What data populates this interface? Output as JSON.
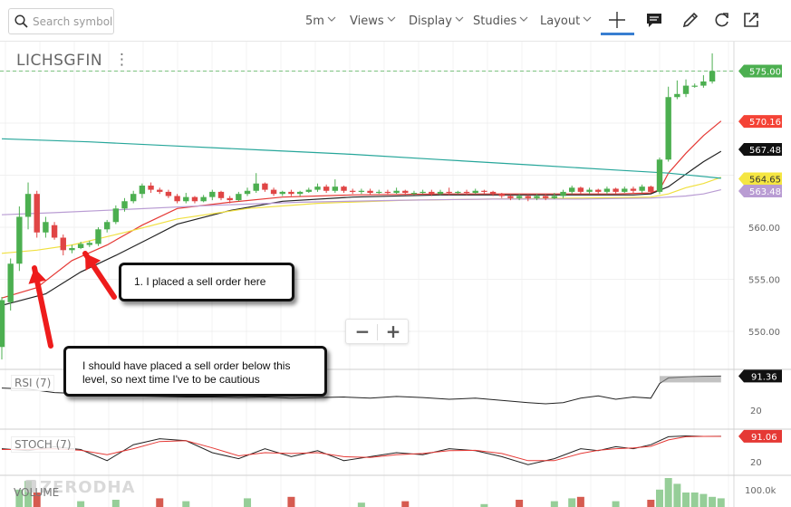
{
  "toolbar": {
    "search_placeholder": "Search symbol",
    "menus": [
      {
        "label": "5m",
        "x": 337
      },
      {
        "label": "Views",
        "x": 386
      },
      {
        "label": "Display",
        "x": 451
      },
      {
        "label": "Studies",
        "x": 522
      },
      {
        "label": "Layout",
        "x": 596
      }
    ]
  },
  "symbol": "LICHSGFIN",
  "chart_data": {
    "type": "candlestick",
    "interval": "5m",
    "y_ticks": [
      "575.00",
      "570.00",
      "565.00",
      "560.00",
      "555.00",
      "550.00"
    ],
    "last_price": "575.00",
    "value_tags": [
      {
        "label": "575.00",
        "color": "#4caf50",
        "value": 575.0
      },
      {
        "label": "570.16",
        "color": "#f44336",
        "value": 570.16
      },
      {
        "label": "567.48",
        "color": "#111111",
        "value": 567.48
      },
      {
        "label": "564.65",
        "color": "#f5e642",
        "value": 564.65
      },
      {
        "label": "563.48",
        "color": "#b99cd3",
        "value": 563.48
      }
    ],
    "candles": [
      [
        548.5,
        553.0,
        547.3,
        553.3
      ],
      [
        552.8,
        556.5,
        552.0,
        557.0
      ],
      [
        556.5,
        561.0,
        555.8,
        562.0
      ],
      [
        561.0,
        563.2,
        559.8,
        564.3
      ],
      [
        563.2,
        559.5,
        559.0,
        563.5
      ],
      [
        559.5,
        560.5,
        559.0,
        561.0
      ],
      [
        560.2,
        559.0,
        558.8,
        560.5
      ],
      [
        559.0,
        557.8,
        557.3,
        559.3
      ],
      [
        557.8,
        558.0,
        557.5,
        558.3
      ],
      [
        558.0,
        558.4,
        557.9,
        558.6
      ],
      [
        558.3,
        558.5,
        558.1,
        558.7
      ],
      [
        558.4,
        559.8,
        558.2,
        560.0
      ],
      [
        559.8,
        560.5,
        559.5,
        560.7
      ],
      [
        560.5,
        561.8,
        560.3,
        562.1
      ],
      [
        561.8,
        562.5,
        561.5,
        562.8
      ],
      [
        562.5,
        563.2,
        562.3,
        563.5
      ],
      [
        563.2,
        564.0,
        562.8,
        564.2
      ],
      [
        564.0,
        563.6,
        563.3,
        564.3
      ],
      [
        563.6,
        563.4,
        563.2,
        563.8
      ],
      [
        563.4,
        563.0,
        562.8,
        563.6
      ],
      [
        563.0,
        562.5,
        562.3,
        563.2
      ],
      [
        562.5,
        562.9,
        562.3,
        563.3
      ],
      [
        562.9,
        562.5,
        562.3,
        563.0
      ],
      [
        562.5,
        562.9,
        562.4,
        563.1
      ],
      [
        562.9,
        563.4,
        562.6,
        563.6
      ],
      [
        563.4,
        562.8,
        562.6,
        563.5
      ],
      [
        562.8,
        562.6,
        562.3,
        563.0
      ],
      [
        562.6,
        563.2,
        562.5,
        563.4
      ],
      [
        563.2,
        563.5,
        563.0,
        563.8
      ],
      [
        563.5,
        564.2,
        563.3,
        565.2
      ],
      [
        564.2,
        563.6,
        563.4,
        564.3
      ],
      [
        563.6,
        563.2,
        563.0,
        563.8
      ],
      [
        563.2,
        563.4,
        563.0,
        563.5
      ],
      [
        563.4,
        563.2,
        563.0,
        563.6
      ],
      [
        563.2,
        563.4,
        563.0,
        563.5
      ],
      [
        563.4,
        563.6,
        563.3,
        563.8
      ],
      [
        563.6,
        563.9,
        563.4,
        564.2
      ],
      [
        563.9,
        563.5,
        563.3,
        564.1
      ],
      [
        563.5,
        563.9,
        563.3,
        564.6
      ],
      [
        563.9,
        563.5,
        563.3,
        564.0
      ],
      [
        563.5,
        563.4,
        563.2,
        563.7
      ],
      [
        563.4,
        563.5,
        563.2,
        563.7
      ],
      [
        563.5,
        563.3,
        563.1,
        563.7
      ],
      [
        563.3,
        563.4,
        563.2,
        563.6
      ],
      [
        563.4,
        563.3,
        563.1,
        563.6
      ],
      [
        563.3,
        563.5,
        563.2,
        563.8
      ],
      [
        563.5,
        563.3,
        563.1,
        563.6
      ],
      [
        563.3,
        563.3,
        563.1,
        563.5
      ],
      [
        563.3,
        563.4,
        563.2,
        563.6
      ],
      [
        563.4,
        563.2,
        563.0,
        563.6
      ],
      [
        563.2,
        563.4,
        563.1,
        563.6
      ],
      [
        563.4,
        563.3,
        563.1,
        563.8
      ],
      [
        563.3,
        563.4,
        563.2,
        563.5
      ],
      [
        563.4,
        563.3,
        563.1,
        563.6
      ],
      [
        563.3,
        563.5,
        563.2,
        563.7
      ],
      [
        563.5,
        563.4,
        563.2,
        563.6
      ],
      [
        563.4,
        563.2,
        563.0,
        563.5
      ],
      [
        563.2,
        563.0,
        562.8,
        563.3
      ],
      [
        563.0,
        562.8,
        562.6,
        563.1
      ],
      [
        562.8,
        563.0,
        562.6,
        563.2
      ],
      [
        563.0,
        562.8,
        562.5,
        563.1
      ],
      [
        562.8,
        563.0,
        562.6,
        563.2
      ],
      [
        563.0,
        562.8,
        562.6,
        563.2
      ],
      [
        562.8,
        563.0,
        562.7,
        563.3
      ],
      [
        563.0,
        563.4,
        562.8,
        563.6
      ],
      [
        563.4,
        563.8,
        563.2,
        564.0
      ],
      [
        563.8,
        563.4,
        563.2,
        563.9
      ],
      [
        563.4,
        563.6,
        563.2,
        563.8
      ],
      [
        563.6,
        563.4,
        563.2,
        563.7
      ],
      [
        563.4,
        563.7,
        563.2,
        563.9
      ],
      [
        563.7,
        563.4,
        563.2,
        563.8
      ],
      [
        563.4,
        563.7,
        563.3,
        563.9
      ],
      [
        563.7,
        563.5,
        563.3,
        563.9
      ],
      [
        563.5,
        563.9,
        563.3,
        564.1
      ],
      [
        563.9,
        563.4,
        563.3,
        564.0
      ],
      [
        563.4,
        566.5,
        563.2,
        566.7
      ],
      [
        566.5,
        572.5,
        566.3,
        573.5
      ],
      [
        572.5,
        572.8,
        572.3,
        574.1
      ],
      [
        572.8,
        573.6,
        572.5,
        574.2
      ],
      [
        573.6,
        573.6,
        573.4,
        573.8
      ],
      [
        573.6,
        574.0,
        573.4,
        574.6
      ],
      [
        574.0,
        575.0,
        573.8,
        576.7
      ]
    ],
    "series": [
      {
        "name": "ema_red",
        "color": "#e53935",
        "points": [
          [
            0,
            553.2
          ],
          [
            4,
            554.2
          ],
          [
            8,
            556.8
          ],
          [
            12,
            558.3
          ],
          [
            16,
            560.2
          ],
          [
            20,
            561.8
          ],
          [
            26,
            562.4
          ],
          [
            32,
            562.9
          ],
          [
            40,
            563.1
          ],
          [
            50,
            563.2
          ],
          [
            60,
            563.2
          ],
          [
            66,
            563.2
          ],
          [
            70,
            563.2
          ],
          [
            74,
            563.3
          ],
          [
            75,
            563.6
          ],
          [
            76,
            565.2
          ],
          [
            78,
            567.1
          ],
          [
            80,
            568.8
          ],
          [
            82,
            570.2
          ]
        ]
      },
      {
        "name": "ema_black",
        "color": "#222222",
        "points": [
          [
            0,
            552.5
          ],
          [
            5,
            553.6
          ],
          [
            9,
            555.7
          ],
          [
            13,
            557.3
          ],
          [
            17,
            559.0
          ],
          [
            20,
            560.3
          ],
          [
            26,
            561.6
          ],
          [
            32,
            562.5
          ],
          [
            40,
            562.9
          ],
          [
            50,
            563.1
          ],
          [
            60,
            563.1
          ],
          [
            66,
            563.1
          ],
          [
            72,
            563.1
          ],
          [
            74,
            563.2
          ],
          [
            76,
            563.9
          ],
          [
            78,
            565.1
          ],
          [
            80,
            566.3
          ],
          [
            82,
            567.3
          ]
        ]
      },
      {
        "name": "ema_yellow",
        "color": "#f0e040",
        "points": [
          [
            0,
            557.5
          ],
          [
            4,
            557.8
          ],
          [
            8,
            558.3
          ],
          [
            14,
            559.5
          ],
          [
            20,
            560.8
          ],
          [
            28,
            561.8
          ],
          [
            36,
            562.3
          ],
          [
            46,
            562.6
          ],
          [
            56,
            562.7
          ],
          [
            66,
            562.8
          ],
          [
            74,
            562.9
          ],
          [
            76,
            563.2
          ],
          [
            78,
            563.8
          ],
          [
            80,
            564.2
          ],
          [
            82,
            564.8
          ]
        ]
      },
      {
        "name": "ema_purple",
        "color": "#b99cd3",
        "points": [
          [
            0,
            561.2
          ],
          [
            6,
            561.4
          ],
          [
            14,
            561.7
          ],
          [
            24,
            562.1
          ],
          [
            34,
            562.4
          ],
          [
            46,
            562.6
          ],
          [
            56,
            562.7
          ],
          [
            66,
            562.7
          ],
          [
            74,
            562.8
          ],
          [
            76,
            562.9
          ],
          [
            78,
            563.0
          ],
          [
            80,
            563.2
          ],
          [
            82,
            563.6
          ]
        ]
      },
      {
        "name": "ema_teal",
        "color": "#26a69a",
        "points": [
          [
            0,
            568.5
          ],
          [
            10,
            568.2
          ],
          [
            20,
            567.8
          ],
          [
            30,
            567.4
          ],
          [
            40,
            567.0
          ],
          [
            50,
            566.5
          ],
          [
            60,
            566.0
          ],
          [
            70,
            565.5
          ],
          [
            76,
            565.2
          ],
          [
            82,
            564.7
          ]
        ]
      }
    ],
    "rsi": {
      "label": "RSI (7)",
      "value_tag": "91.36",
      "tick": "20",
      "points": [
        [
          0,
          70
        ],
        [
          3,
          68
        ],
        [
          6,
          62
        ],
        [
          9,
          60
        ],
        [
          12,
          58
        ],
        [
          15,
          56
        ],
        [
          18,
          55
        ],
        [
          21,
          54
        ],
        [
          24,
          54
        ],
        [
          27,
          53
        ],
        [
          30,
          54
        ],
        [
          33,
          52
        ],
        [
          36,
          53
        ],
        [
          39,
          54
        ],
        [
          42,
          52
        ],
        [
          45,
          55
        ],
        [
          48,
          53
        ],
        [
          51,
          50
        ],
        [
          54,
          52
        ],
        [
          57,
          48
        ],
        [
          60,
          44
        ],
        [
          62,
          42
        ],
        [
          64,
          44
        ],
        [
          66,
          52
        ],
        [
          68,
          56
        ],
        [
          70,
          50
        ],
        [
          72,
          54
        ],
        [
          74,
          52
        ],
        [
          75,
          78
        ],
        [
          76,
          88
        ],
        [
          78,
          90
        ],
        [
          80,
          91
        ],
        [
          82,
          91.36
        ]
      ]
    },
    "stoch": {
      "label": "STOCH (7)",
      "value_tag": "91.06",
      "tick": "20",
      "k_points": [
        [
          0,
          60
        ],
        [
          3,
          55
        ],
        [
          6,
          65
        ],
        [
          9,
          58
        ],
        [
          12,
          30
        ],
        [
          15,
          70
        ],
        [
          18,
          85
        ],
        [
          21,
          80
        ],
        [
          24,
          50
        ],
        [
          27,
          35
        ],
        [
          30,
          60
        ],
        [
          33,
          40
        ],
        [
          36,
          55
        ],
        [
          39,
          30
        ],
        [
          42,
          40
        ],
        [
          45,
          50
        ],
        [
          48,
          45
        ],
        [
          51,
          60
        ],
        [
          54,
          55
        ],
        [
          57,
          40
        ],
        [
          60,
          20
        ],
        [
          63,
          35
        ],
        [
          66,
          60
        ],
        [
          68,
          55
        ],
        [
          70,
          65
        ],
        [
          72,
          60
        ],
        [
          74,
          70
        ],
        [
          76,
          90
        ],
        [
          78,
          92
        ],
        [
          80,
          91
        ],
        [
          82,
          91.06
        ]
      ],
      "d_points": [
        [
          0,
          58
        ],
        [
          3,
          58
        ],
        [
          6,
          60
        ],
        [
          9,
          56
        ],
        [
          12,
          45
        ],
        [
          15,
          60
        ],
        [
          18,
          78
        ],
        [
          21,
          80
        ],
        [
          24,
          62
        ],
        [
          27,
          42
        ],
        [
          30,
          50
        ],
        [
          33,
          48
        ],
        [
          36,
          50
        ],
        [
          39,
          40
        ],
        [
          42,
          38
        ],
        [
          45,
          45
        ],
        [
          48,
          48
        ],
        [
          51,
          55
        ],
        [
          54,
          56
        ],
        [
          57,
          48
        ],
        [
          60,
          30
        ],
        [
          63,
          30
        ],
        [
          66,
          48
        ],
        [
          68,
          56
        ],
        [
          70,
          60
        ],
        [
          72,
          62
        ],
        [
          74,
          66
        ],
        [
          76,
          82
        ],
        [
          78,
          90
        ],
        [
          80,
          91
        ],
        [
          82,
          91
        ]
      ]
    },
    "volume": {
      "label": "VOLUME",
      "tick": "100.0k",
      "bars": [
        [
          2,
          0.6,
          "g"
        ],
        [
          3,
          0.9,
          "g"
        ],
        [
          4,
          0.5,
          "r"
        ],
        [
          9,
          0.2,
          "g"
        ],
        [
          13,
          0.25,
          "g"
        ],
        [
          18,
          0.3,
          "r"
        ],
        [
          21,
          0.2,
          "g"
        ],
        [
          28,
          0.3,
          "g"
        ],
        [
          33,
          0.35,
          "r"
        ],
        [
          41,
          0.15,
          "g"
        ],
        [
          46,
          0.2,
          "r"
        ],
        [
          55,
          0.1,
          "g"
        ],
        [
          59,
          0.25,
          "r"
        ],
        [
          63,
          0.2,
          "g"
        ],
        [
          65,
          0.3,
          "g"
        ],
        [
          66,
          0.35,
          "r"
        ],
        [
          70,
          0.2,
          "g"
        ],
        [
          74,
          0.25,
          "r"
        ],
        [
          75,
          0.6,
          "g"
        ],
        [
          76,
          1.0,
          "g"
        ],
        [
          77,
          0.8,
          "g"
        ],
        [
          78,
          0.5,
          "g"
        ],
        [
          79,
          0.5,
          "g"
        ],
        [
          80,
          0.45,
          "g"
        ],
        [
          81,
          0.35,
          "g"
        ],
        [
          82,
          0.3,
          "g"
        ]
      ]
    }
  },
  "annotations": {
    "note1": "1. I placed a sell order here",
    "note2_line1": "I should have placed a sell order below this",
    "note2_line2": "level, so next time I've to be cautious"
  },
  "zoom": {
    "minus": "−",
    "plus": "+"
  },
  "watermark": "ZERODHA"
}
